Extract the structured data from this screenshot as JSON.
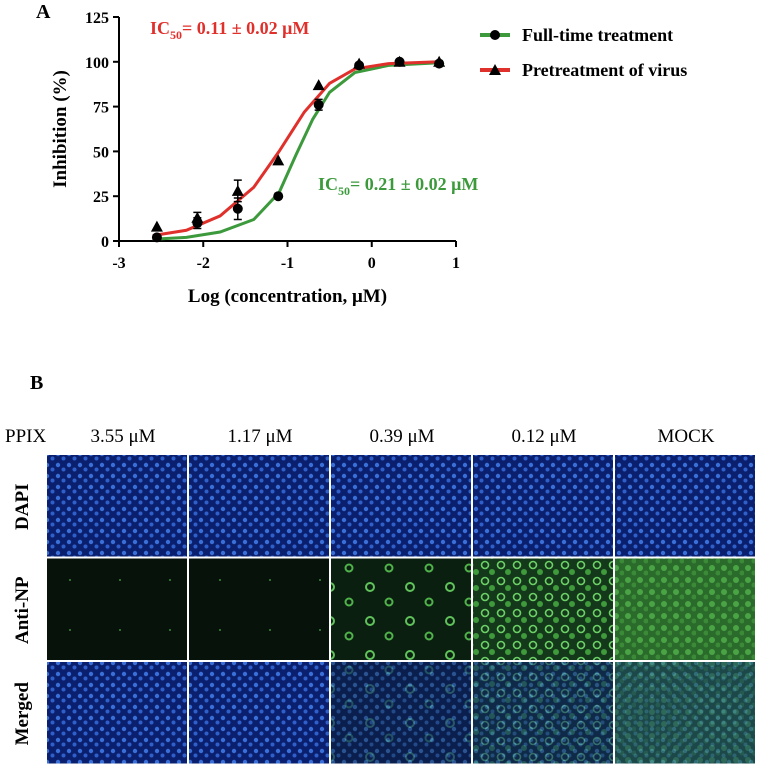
{
  "chart_data": {
    "type": "scatter",
    "panel_label": "A",
    "xlabel": "Log (concentration, μM)",
    "ylabel": "Inhibition (%)",
    "xlim": [
      -3,
      1
    ],
    "xticks": [
      -3,
      -2,
      -1,
      0,
      1
    ],
    "ylim": [
      0,
      125
    ],
    "yticks": [
      0,
      25,
      50,
      75,
      100,
      125
    ],
    "x": [
      -2.55,
      -2.07,
      -1.59,
      -1.11,
      -0.63,
      -0.15,
      0.33,
      0.8
    ],
    "series": [
      {
        "name": "Full-time treatment",
        "color": "#3c9a3c",
        "marker": "circle",
        "marker_color": "#000000",
        "values": [
          2,
          10,
          18,
          25,
          76,
          98,
          100,
          99
        ],
        "errors": [
          1,
          3,
          6,
          0,
          3,
          1,
          0,
          0
        ],
        "curve": {
          "x": [
            -2.6,
            -2.2,
            -1.8,
            -1.4,
            -1.1,
            -0.9,
            -0.7,
            -0.5,
            -0.2,
            0.2,
            0.8
          ],
          "values": [
            1,
            2,
            5,
            12,
            27,
            48,
            68,
            83,
            94,
            98,
            99.5
          ]
        }
      },
      {
        "name": "Pretreatment of virus",
        "color": "#e0302c",
        "marker": "triangle",
        "marker_color": "#000000",
        "values": [
          8,
          13,
          28,
          45,
          87,
          99,
          100,
          100
        ],
        "errors": [
          0,
          3,
          6,
          0,
          0,
          0,
          0,
          0
        ],
        "curve": {
          "x": [
            -2.6,
            -2.2,
            -1.8,
            -1.4,
            -1.1,
            -0.8,
            -0.5,
            -0.2,
            0.2,
            0.8
          ],
          "values": [
            3,
            6,
            14,
            30,
            50,
            72,
            88,
            96,
            99,
            100
          ]
        }
      }
    ],
    "annotations": [
      {
        "prefix": "IC",
        "sub": "50",
        "text": "= 0.11 ± 0.02 μM",
        "color": "#e0302c"
      },
      {
        "prefix": "IC",
        "sub": "50",
        "text": "= 0.21 ± 0.02 μM",
        "color": "#3c9a3c"
      }
    ]
  },
  "panel_b": {
    "label": "B",
    "row_header": "PPIX",
    "columns": [
      "3.55 μM",
      "1.17 μM",
      "0.39 μM",
      "0.12 μM",
      "MOCK"
    ],
    "rows": [
      "DAPI",
      "Anti-NP",
      "Merged"
    ]
  }
}
